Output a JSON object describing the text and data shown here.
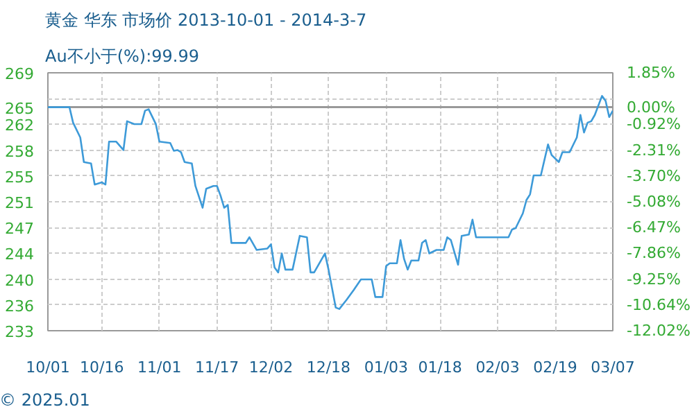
{
  "chart_data": {
    "type": "line",
    "title": "黄金 华东 市场价 2013-10-01 - 2014-3-7",
    "subtitle": "Au不小于(%):99.99",
    "annotations": [
      "© 2025.01"
    ],
    "x": [
      "2013-10-01",
      "2013-10-07",
      "2013-10-08",
      "2013-10-10",
      "2013-10-11",
      "2013-10-13",
      "2013-10-14",
      "2013-10-16",
      "2013-10-17",
      "2013-10-18",
      "2013-10-20",
      "2013-10-22",
      "2013-10-23",
      "2013-10-25",
      "2013-10-27",
      "2013-10-28",
      "2013-10-29",
      "2013-10-31",
      "2013-11-01",
      "2013-11-04",
      "2013-11-05",
      "2013-11-06",
      "2013-11-07",
      "2013-11-08",
      "2013-11-10",
      "2013-11-11",
      "2013-11-13",
      "2013-11-14",
      "2013-11-16",
      "2013-11-17",
      "2013-11-18",
      "2013-11-19",
      "2013-11-20",
      "2013-11-21",
      "2013-11-25",
      "2013-11-26",
      "2013-11-28",
      "2013-12-01",
      "2013-12-02",
      "2013-12-03",
      "2013-12-04",
      "2013-12-05",
      "2013-12-06",
      "2013-12-08",
      "2013-12-10",
      "2013-12-12",
      "2013-12-13",
      "2013-12-14",
      "2013-12-17",
      "2013-12-18",
      "2013-12-20",
      "2013-12-21",
      "2013-12-23",
      "2013-12-25",
      "2013-12-27",
      "2013-12-30",
      "2013-12-31",
      "2014-01-02",
      "2014-01-03",
      "2014-01-04",
      "2014-01-06",
      "2014-01-07",
      "2014-01-08",
      "2014-01-09",
      "2014-01-10",
      "2014-01-12",
      "2014-01-13",
      "2014-01-14",
      "2014-01-15",
      "2014-01-17",
      "2014-01-19",
      "2014-01-20",
      "2014-01-21",
      "2014-01-23",
      "2014-01-24",
      "2014-01-26",
      "2014-01-27",
      "2014-01-28",
      "2014-02-06",
      "2014-02-07",
      "2014-02-08",
      "2014-02-10",
      "2014-02-11",
      "2014-02-12",
      "2014-02-13",
      "2014-02-15",
      "2014-02-17",
      "2014-02-18",
      "2014-02-20",
      "2014-02-21",
      "2014-02-23",
      "2014-02-25",
      "2014-02-26",
      "2014-02-27",
      "2014-02-28",
      "2014-03-01",
      "2014-03-02",
      "2014-03-04",
      "2014-03-05",
      "2014-03-06",
      "2014-03-07"
    ],
    "series": [
      {
        "color": "#3d9ad8",
        "values": [
          264.5,
          264.5,
          262.3,
          260.2,
          256.7,
          256.5,
          253.5,
          253.8,
          253.5,
          259.6,
          259.6,
          258.4,
          262.5,
          262.1,
          262.1,
          264.0,
          264.2,
          262.1,
          259.6,
          259.4,
          258.3,
          258.4,
          258.1,
          256.7,
          256.5,
          253.3,
          250.2,
          252.9,
          253.3,
          253.3,
          251.9,
          250.2,
          250.6,
          245.2,
          245.2,
          246.0,
          244.2,
          244.4,
          245.0,
          241.7,
          241.0,
          243.7,
          241.4,
          241.4,
          246.2,
          246.0,
          241.0,
          241.0,
          243.7,
          241.4,
          236.0,
          235.8,
          237.1,
          238.5,
          240.0,
          240.0,
          237.5,
          237.5,
          241.9,
          242.3,
          242.3,
          245.6,
          242.9,
          241.4,
          242.7,
          242.7,
          245.2,
          245.6,
          243.7,
          244.2,
          244.2,
          246.0,
          245.6,
          242.1,
          246.2,
          246.4,
          248.5,
          246.0,
          246.0,
          247.1,
          247.3,
          249.4,
          251.3,
          252.1,
          254.8,
          254.8,
          259.2,
          257.7,
          256.7,
          258.1,
          258.1,
          260.2,
          263.4,
          260.9,
          262.3,
          262.5,
          263.4,
          266.1,
          265.4,
          263.1,
          264.0
        ]
      }
    ],
    "xlim": [
      "2013-10-01",
      "2014-03-07"
    ],
    "xticks": [
      {
        "value": "2013-10-01",
        "label": "10/01"
      },
      {
        "value": "2013-10-16",
        "label": "10/16"
      },
      {
        "value": "2013-11-01",
        "label": "11/01"
      },
      {
        "value": "2013-11-17",
        "label": "11/17"
      },
      {
        "value": "2013-12-02",
        "label": "12/02"
      },
      {
        "value": "2013-12-18",
        "label": "12/18"
      },
      {
        "value": "2014-01-03",
        "label": "01/03"
      },
      {
        "value": "2014-01-18",
        "label": "01/18"
      },
      {
        "value": "2014-02-03",
        "label": "02/03"
      },
      {
        "value": "2014-02-19",
        "label": "02/19"
      },
      {
        "value": "2014-03-07",
        "label": "03/07"
      }
    ],
    "ylim": [
      232.71,
      269.39
    ],
    "yticks": [
      {
        "value": 269.39,
        "label": "269"
      },
      {
        "value": 265.74,
        "label": null
      },
      {
        "value": 264.5,
        "label": "265"
      },
      {
        "value": 262.07,
        "label": "262"
      },
      {
        "value": 258.39,
        "label": "258"
      },
      {
        "value": 254.71,
        "label": "255"
      },
      {
        "value": 251.06,
        "label": "251"
      },
      {
        "value": 247.39,
        "label": "247"
      },
      {
        "value": 243.71,
        "label": "244"
      },
      {
        "value": 240.03,
        "label": "240"
      },
      {
        "value": 236.36,
        "label": "236"
      },
      {
        "value": 232.71,
        "label": "233"
      }
    ],
    "y2lim": [
      -12.02,
      1.85
    ],
    "y2ticks": [
      {
        "value": 1.85,
        "label": "1.85%"
      },
      {
        "value": 0.47,
        "label": null
      },
      {
        "value": 0,
        "label": "0.00%"
      },
      {
        "value": -0.92,
        "label": "-0.92%"
      },
      {
        "value": -2.31,
        "label": "-2.31%"
      },
      {
        "value": -3.7,
        "label": "-3.70%"
      },
      {
        "value": -5.08,
        "label": "-5.08%"
      },
      {
        "value": -6.47,
        "label": "-6.47%"
      },
      {
        "value": -7.86,
        "label": "-7.86%"
      },
      {
        "value": -9.25,
        "label": "-9.25%"
      },
      {
        "value": -10.64,
        "label": "-10.64%"
      },
      {
        "value": -12.02,
        "label": "-12.02%"
      }
    ],
    "ref_lines": [
      {
        "axis": "y",
        "value": 264.5,
        "color": "#999999"
      }
    ],
    "grid": true,
    "marker": "none",
    "line_style": "solid"
  }
}
